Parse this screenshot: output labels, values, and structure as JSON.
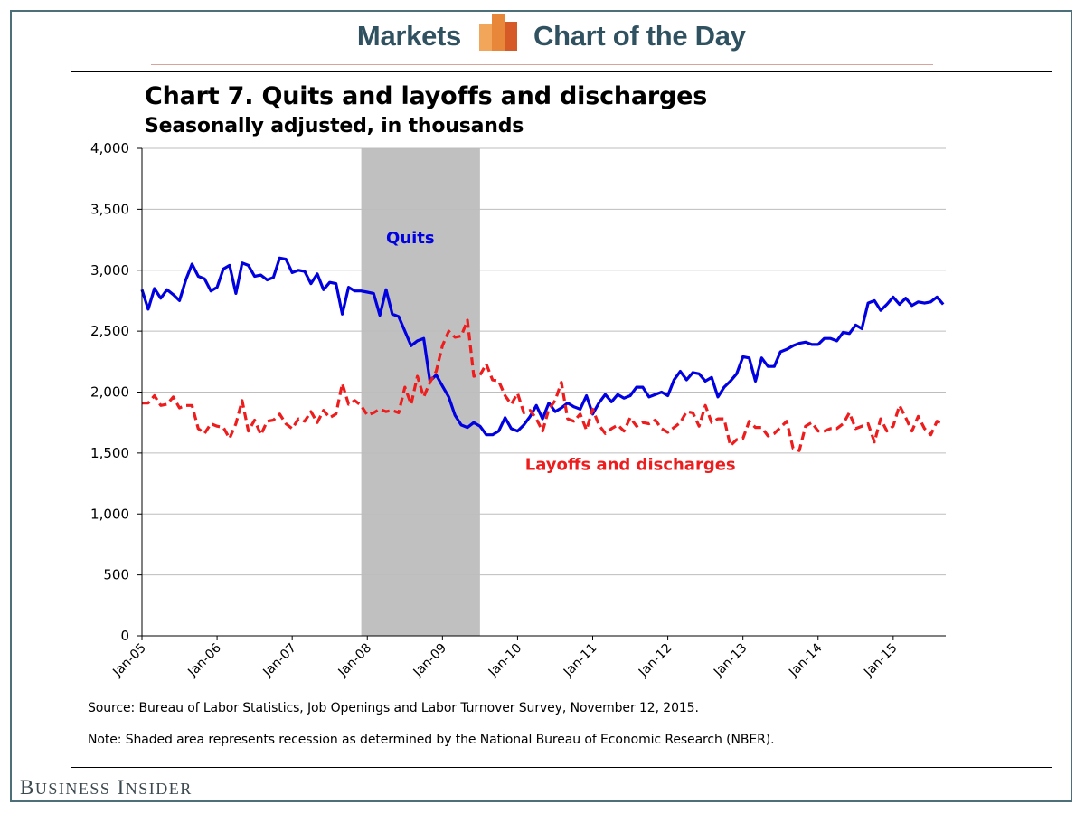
{
  "header": {
    "left_label": "Markets",
    "right_label": "Chart of the Day",
    "logo_colors": [
      "#f2a65a",
      "#e8873a",
      "#d65a27"
    ]
  },
  "brand": {
    "first": "B",
    "first_rest": "USINESS",
    "second": "I",
    "second_rest": "NSIDER",
    "full": "Business Insider"
  },
  "notes": {
    "source": "Source: Bureau of Labor Statistics,  Job Openings and Labor Turnover Survey, November 12, 2015.",
    "note": "Note: Shaded area represents recession as determined by the National Bureau of Economic Research (NBER)."
  },
  "chart_data": {
    "type": "line",
    "title": "Chart 7. Quits and layoffs and discharges",
    "subtitle": "Seasonally adjusted, in thousands",
    "xlabel": "",
    "ylabel": "",
    "ylim": [
      0,
      4000
    ],
    "y_ticks": [
      "4,000",
      "3,500",
      "3,000",
      "2,500",
      "2,000",
      "1,500",
      "1,000",
      "500",
      "0"
    ],
    "x_ticks": [
      "Jan-05",
      "Jan-06",
      "Jan-07",
      "Jan-08",
      "Jan-09",
      "Jan-10",
      "Jan-11",
      "Jan-12",
      "Jan-13",
      "Jan-14",
      "Jan-15"
    ],
    "x_start_year": 2005,
    "x_end_year_fraction": 2015.7,
    "grid": true,
    "recession": {
      "start": 2007.92,
      "end": 2009.5,
      "color": "#c0c0c0"
    },
    "series": [
      {
        "name": "Quits",
        "label": "Quits",
        "color": "#0000e0",
        "style": "solid",
        "label_at": {
          "x": 2008.25,
          "y": 3220
        },
        "values": [
          2840,
          2680,
          2850,
          2770,
          2840,
          2800,
          2750,
          2920,
          3050,
          2950,
          2930,
          2830,
          2860,
          3010,
          3040,
          2810,
          3060,
          3040,
          2950,
          2960,
          2920,
          2940,
          3100,
          3090,
          2980,
          3000,
          2990,
          2890,
          2970,
          2840,
          2900,
          2890,
          2640,
          2860,
          2830,
          2830,
          2820,
          2810,
          2630,
          2840,
          2640,
          2620,
          2500,
          2380,
          2420,
          2440,
          2090,
          2140,
          2050,
          1960,
          1810,
          1730,
          1710,
          1750,
          1720,
          1650,
          1650,
          1680,
          1790,
          1700,
          1680,
          1730,
          1800,
          1890,
          1780,
          1910,
          1840,
          1870,
          1910,
          1880,
          1860,
          1970,
          1820,
          1910,
          1980,
          1920,
          1980,
          1950,
          1970,
          2040,
          2040,
          1960,
          1980,
          2000,
          1970,
          2100,
          2170,
          2100,
          2160,
          2150,
          2090,
          2120,
          1960,
          2040,
          2090,
          2150,
          2290,
          2280,
          2090,
          2280,
          2210,
          2210,
          2330,
          2350,
          2380,
          2400,
          2410,
          2390,
          2390,
          2440,
          2440,
          2420,
          2490,
          2480,
          2550,
          2520,
          2730,
          2750,
          2670,
          2720,
          2780,
          2720,
          2770,
          2710,
          2740,
          2730,
          2740,
          2780,
          2720
        ]
      },
      {
        "name": "Layoffs and discharges",
        "label": "Layoffs and discharges",
        "color": "#ee1c1c",
        "style": "dashed",
        "label_at": {
          "x": 2010.1,
          "y": 1360
        },
        "values": [
          1910,
          1910,
          1970,
          1890,
          1900,
          1960,
          1870,
          1890,
          1890,
          1700,
          1660,
          1740,
          1720,
          1710,
          1620,
          1740,
          1930,
          1680,
          1770,
          1650,
          1760,
          1770,
          1820,
          1740,
          1700,
          1780,
          1760,
          1840,
          1750,
          1850,
          1790,
          1820,
          2070,
          1900,
          1930,
          1890,
          1810,
          1830,
          1860,
          1840,
          1850,
          1830,
          2040,
          1900,
          2130,
          1960,
          2080,
          2170,
          2380,
          2500,
          2450,
          2460,
          2590,
          2130,
          2140,
          2230,
          2100,
          2090,
          1970,
          1900,
          1990,
          1830,
          1850,
          1780,
          1680,
          1860,
          1930,
          2080,
          1780,
          1760,
          1820,
          1690,
          1860,
          1730,
          1660,
          1700,
          1730,
          1680,
          1790,
          1720,
          1750,
          1740,
          1770,
          1700,
          1670,
          1710,
          1750,
          1840,
          1830,
          1720,
          1890,
          1750,
          1780,
          1780,
          1560,
          1610,
          1620,
          1760,
          1710,
          1710,
          1640,
          1660,
          1710,
          1760,
          1540,
          1520,
          1720,
          1750,
          1680,
          1680,
          1700,
          1700,
          1740,
          1830,
          1700,
          1720,
          1740,
          1590,
          1780,
          1680,
          1720,
          1890,
          1790,
          1680,
          1800,
          1700,
          1650,
          1760,
          1740
        ]
      }
    ]
  }
}
